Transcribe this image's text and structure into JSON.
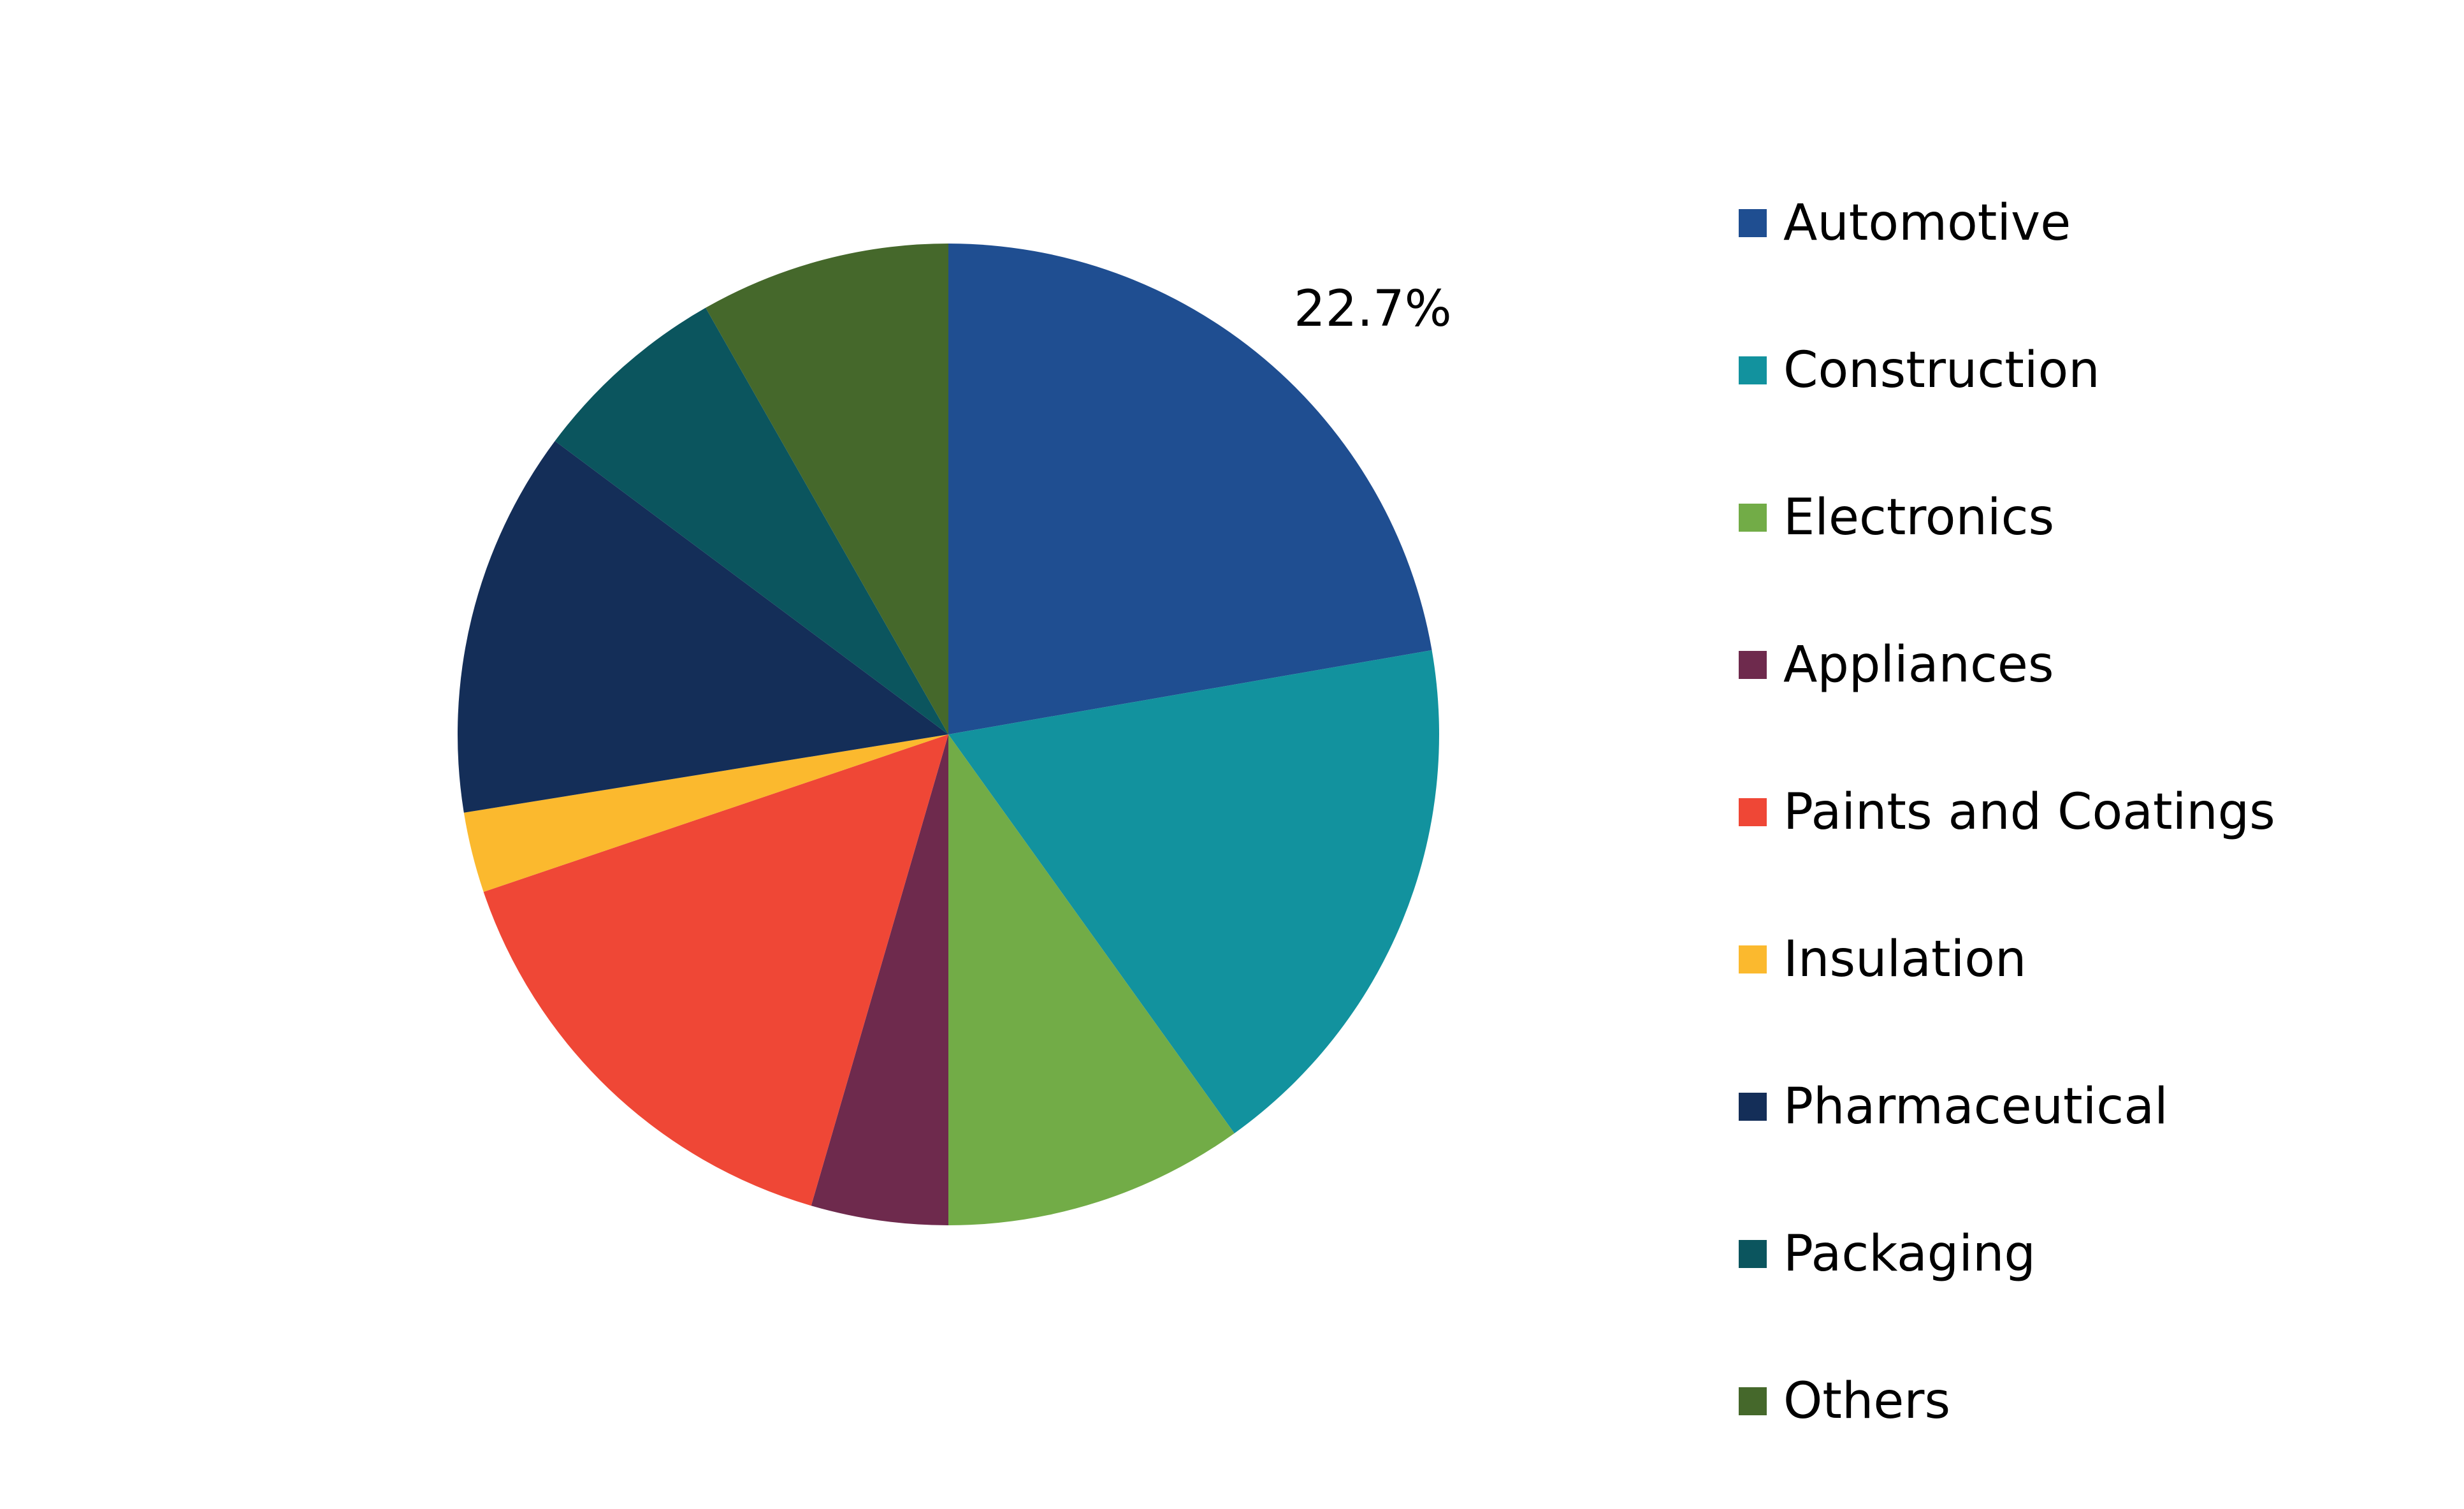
{
  "chart_data": {
    "type": "pie",
    "title": "",
    "categories": [
      "Automotive",
      "Construction",
      "Electronics",
      "Appliances",
      "Paints and Coatings",
      "Insulation",
      "Pharmaceutical",
      "Packaging",
      "Others"
    ],
    "values": [
      22.7,
      18.2,
      10.1,
      4.6,
      15.6,
      2.7,
      13.0,
      6.7,
      8.4
    ],
    "colors": [
      "#1F4E91",
      "#12929E",
      "#72AC47",
      "#6E2A4D",
      "#EF4736",
      "#FBB92E",
      "#142E58",
      "#0B555E",
      "#45682B"
    ],
    "data_labels": [
      {
        "category": "Automotive",
        "text": "22.7%"
      }
    ],
    "legend_placement": "right",
    "start_angle": "12 o'clock",
    "direction": "clockwise"
  }
}
